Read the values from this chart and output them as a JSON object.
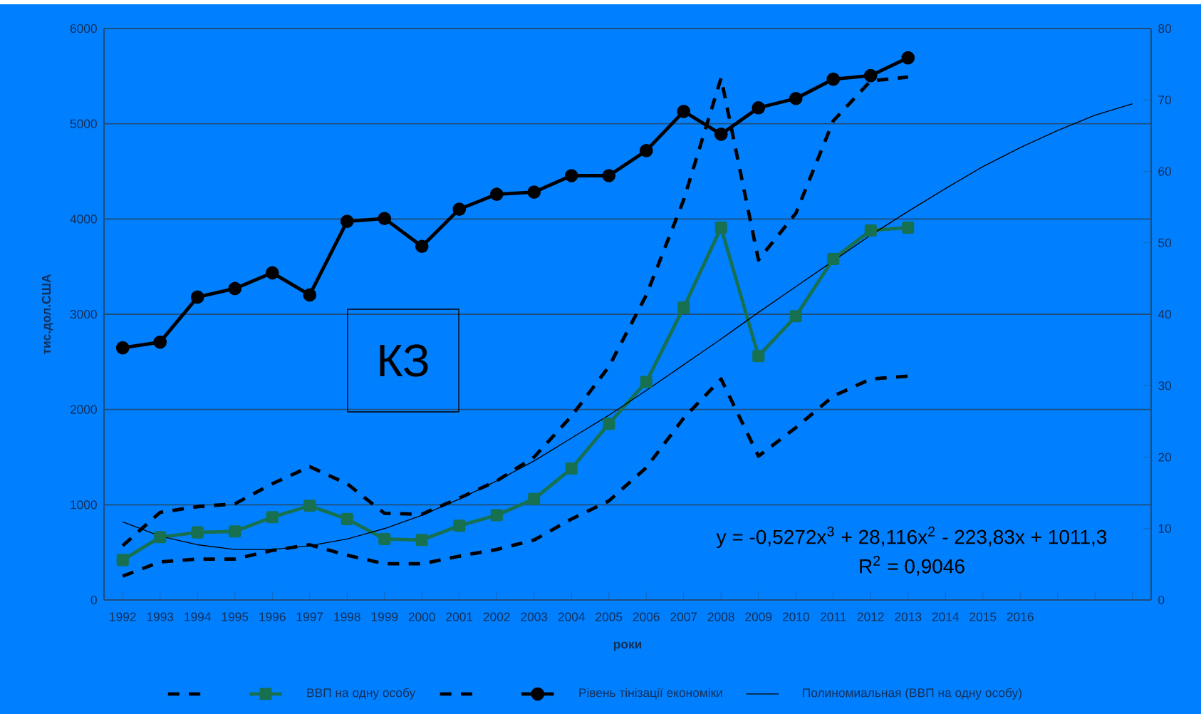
{
  "chart_data": {
    "type": "line",
    "xlabel": "роки",
    "ylabel": "тис.дол.США",
    "categories": [
      "1992",
      "1993",
      "1994",
      "1995",
      "1996",
      "1997",
      "1998",
      "1999",
      "2000",
      "2001",
      "2002",
      "2003",
      "2004",
      "2005",
      "2006",
      "2007",
      "2008",
      "2009",
      "2010",
      "2011",
      "2012",
      "2013",
      "2014",
      "2015",
      "2016",
      null,
      null,
      null
    ],
    "series": [
      {
        "color": "#000000",
        "line_style": "dashed",
        "marker": "none",
        "values": [
          250,
          400,
          430,
          430,
          520,
          580,
          470,
          380,
          380,
          460,
          530,
          630,
          850,
          1040,
          1390,
          1910,
          2320,
          1510,
          1810,
          2140,
          2320,
          2350,
          null,
          null,
          null,
          null,
          null,
          null
        ]
      },
      {
        "name": "ВВП на одну особу",
        "color": "#17704f",
        "line_style": "solid",
        "marker": "square",
        "values": [
          420,
          660,
          710,
          720,
          870,
          990,
          850,
          640,
          630,
          780,
          890,
          1060,
          1380,
          1850,
          2290,
          3070,
          3910,
          2560,
          2980,
          3580,
          3880,
          3910,
          null,
          null,
          null,
          null,
          null,
          null
        ]
      },
      {
        "color": "#000000",
        "line_style": "dashed",
        "marker": "none",
        "values": [
          570,
          920,
          980,
          1010,
          1220,
          1400,
          1220,
          910,
          900,
          1070,
          1250,
          1500,
          1930,
          2450,
          3200,
          4200,
          5480,
          3570,
          4060,
          5030,
          5450,
          5490,
          null,
          null,
          null,
          null,
          null,
          null
        ]
      },
      {
        "name": "Рівень тінізації економіки",
        "color": "#000000",
        "line_style": "solid",
        "marker": "circle",
        "axis": "y2",
        "values": [
          35.3,
          36.1,
          42.4,
          43.6,
          45.8,
          42.7,
          53.0,
          53.4,
          49.5,
          54.7,
          56.8,
          57.1,
          59.4,
          59.4,
          62.9,
          68.4,
          65.2,
          68.9,
          70.2,
          72.9,
          73.4,
          75.9,
          null,
          null,
          null,
          null,
          null,
          null
        ]
      },
      {
        "name": "Полиномиальная (ВВП на одну особу)",
        "color": "#000000",
        "line_style": "solid",
        "marker": "none",
        "values": [
          820,
          670,
          580,
          530,
          530,
          570,
          640,
          750,
          890,
          1060,
          1250,
          1460,
          1700,
          1940,
          2200,
          2470,
          2740,
          3020,
          3290,
          3560,
          3830,
          4080,
          4320,
          4550,
          4750,
          4930,
          5090,
          5210
        ]
      }
    ],
    "ylim": [
      0,
      6000
    ],
    "yticks": [
      0,
      1000,
      2000,
      3000,
      4000,
      5000,
      6000
    ],
    "y2lim": [
      0,
      80
    ],
    "y2ticks": [
      0,
      10,
      20,
      30,
      40,
      50,
      60,
      70,
      80
    ],
    "grid": "y",
    "legend": "bottom",
    "annotations": [
      "КЗ",
      "y = -0,5272x$^{3}$ + 28,116x$^{2}$ - 223,83x + 1011,3",
      "R$^{2}$ = 0,9046"
    ]
  }
}
